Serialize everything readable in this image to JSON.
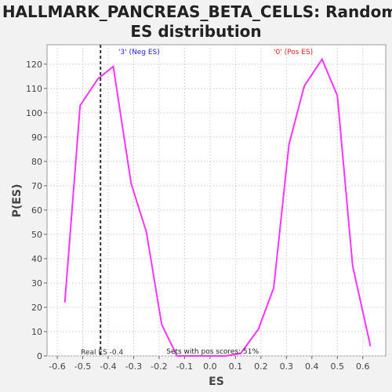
{
  "chart_data": {
    "type": "line",
    "title_line1": "HALLMARK_PANCREAS_BETA_CELLS: Random",
    "title_line2": "ES distribution",
    "xlabel": "ES",
    "ylabel": "P(ES)",
    "xlim": [
      -0.64,
      0.69
    ],
    "ylim": [
      0,
      128
    ],
    "xticks": [
      -0.6,
      -0.5,
      -0.4,
      -0.3,
      -0.2,
      -0.1,
      0.0,
      0.1,
      0.2,
      0.3,
      0.4,
      0.5,
      0.6
    ],
    "xtick_labels": [
      "-0.6",
      "-0.5",
      "-0.4",
      "-0.3",
      "-0.2",
      "-0.1",
      "0.0",
      "0.1",
      "0.2",
      "0.3",
      "0.4",
      "0.5",
      "0.6"
    ],
    "yticks": [
      0,
      10,
      20,
      30,
      40,
      50,
      60,
      70,
      80,
      90,
      100,
      110,
      120
    ],
    "ytick_labels": [
      "0",
      "10",
      "20",
      "30",
      "40",
      "50",
      "60",
      "70",
      "80",
      "90",
      "100",
      "110",
      "120"
    ],
    "grid": true,
    "series": [
      {
        "color": "#ff33ff",
        "x": [
          -0.57,
          -0.51,
          -0.44,
          -0.38,
          -0.31,
          -0.25,
          -0.19,
          -0.13,
          -0.06,
          0.0,
          0.06,
          0.12,
          0.19,
          0.25,
          0.31,
          0.37,
          0.44,
          0.5,
          0.56,
          0.63
        ],
        "y": [
          22,
          103,
          114,
          119,
          71,
          51,
          13,
          0,
          0,
          0,
          0,
          1,
          11,
          28,
          87,
          111,
          122,
          107,
          37,
          4
        ]
      }
    ],
    "real_es": {
      "x": -0.43,
      "label": "Real ES -0.4",
      "color": "#333333"
    },
    "annotations": {
      "neg_label": "'3' (Neg ES)",
      "neg_color": "#2222dd",
      "pos_label": "'0' (Pos ES)",
      "pos_color": "#dd2222",
      "pos_scores_text": "Sets with pos scores: 51%"
    }
  }
}
